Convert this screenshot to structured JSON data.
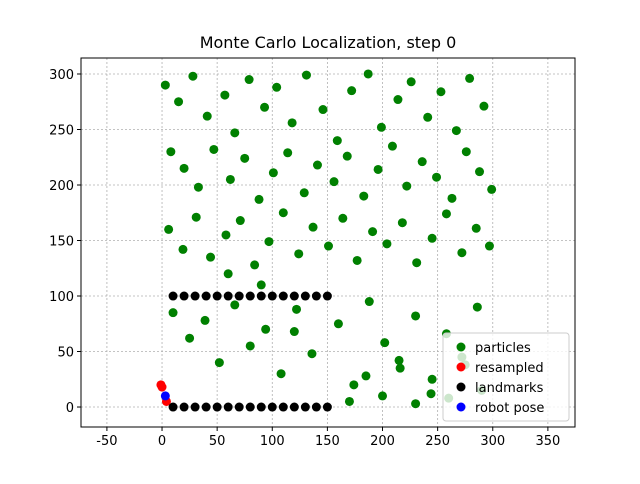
{
  "chart_data": {
    "type": "scatter",
    "title": "Monte Carlo Localization, step 0",
    "xlim": [
      -73.5,
      374.6
    ],
    "ylim": [
      -18,
      314.4
    ],
    "xticks": [
      -50,
      0,
      50,
      100,
      150,
      200,
      250,
      300,
      350
    ],
    "yticks": [
      0,
      50,
      100,
      150,
      200,
      250,
      300
    ],
    "grid": true,
    "legend": "lower right",
    "series": [
      {
        "name": "particles",
        "color": "#008000",
        "x": [
          3,
          15,
          28,
          41,
          57,
          66,
          79,
          93,
          104,
          118,
          131,
          146,
          159,
          172,
          187,
          199,
          214,
          226,
          241,
          253,
          267,
          279,
          292,
          8,
          20,
          33,
          47,
          62,
          75,
          88,
          101,
          114,
          129,
          141,
          156,
          168,
          183,
          196,
          209,
          222,
          236,
          249,
          263,
          276,
          288,
          299,
          6,
          19,
          31,
          44,
          58,
          71,
          84,
          97,
          110,
          124,
          137,
          151,
          164,
          177,
          191,
          204,
          218,
          231,
          245,
          258,
          272,
          285,
          297,
          10,
          25,
          39,
          52,
          66,
          80,
          94,
          108,
          122,
          136,
          160,
          174,
          188,
          202,
          216,
          230,
          244,
          258,
          272,
          286,
          170,
          185,
          200,
          215,
          230,
          245,
          260,
          275,
          290,
          120,
          90,
          60
        ],
        "y": [
          290,
          275,
          298,
          262,
          281,
          247,
          295,
          270,
          288,
          256,
          299,
          268,
          240,
          285,
          300,
          252,
          277,
          293,
          261,
          284,
          249,
          296,
          271,
          230,
          215,
          198,
          232,
          205,
          224,
          187,
          211,
          229,
          193,
          218,
          203,
          226,
          190,
          214,
          235,
          199,
          221,
          207,
          188,
          230,
          212,
          196,
          160,
          142,
          171,
          135,
          155,
          168,
          128,
          149,
          175,
          138,
          162,
          145,
          170,
          132,
          158,
          147,
          166,
          130,
          152,
          174,
          139,
          161,
          145,
          85,
          62,
          78,
          40,
          92,
          55,
          70,
          30,
          88,
          48,
          75,
          20,
          95,
          58,
          35,
          82,
          12,
          66,
          45,
          90,
          5,
          28,
          10,
          42,
          3,
          25,
          8,
          38,
          15,
          68,
          110,
          120
        ]
      },
      {
        "name": "resampled",
        "color": "#ff0000",
        "x": [
          0,
          -1,
          4
        ],
        "y": [
          18,
          20,
          5
        ]
      },
      {
        "name": "landmarks",
        "color": "#000000",
        "x": [
          10,
          20,
          30,
          40,
          50,
          60,
          70,
          80,
          90,
          100,
          110,
          120,
          130,
          140,
          150,
          10,
          20,
          30,
          40,
          50,
          60,
          70,
          80,
          90,
          100,
          110,
          120,
          130,
          140,
          150
        ],
        "y": [
          100,
          100,
          100,
          100,
          100,
          100,
          100,
          100,
          100,
          100,
          100,
          100,
          100,
          100,
          100,
          0,
          0,
          0,
          0,
          0,
          0,
          0,
          0,
          0,
          0,
          0,
          0,
          0,
          0,
          0
        ]
      },
      {
        "name": "robot pose",
        "color": "#0000ff",
        "x": [
          3
        ],
        "y": [
          10
        ]
      }
    ]
  }
}
